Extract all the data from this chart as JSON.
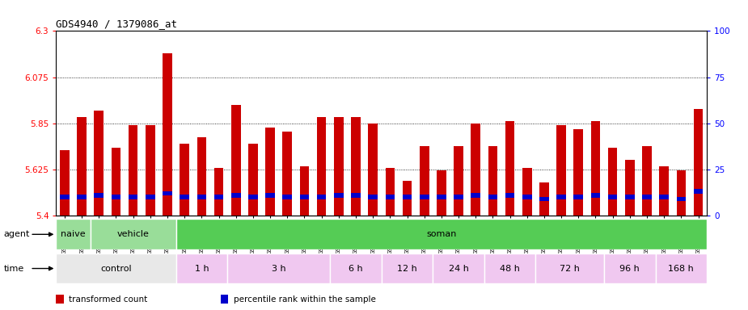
{
  "title": "GDS4940 / 1379086_at",
  "samples": [
    "GSM338857",
    "GSM338858",
    "GSM338859",
    "GSM338862",
    "GSM338864",
    "GSM338877",
    "GSM338880",
    "GSM338860",
    "GSM338861",
    "GSM338863",
    "GSM338865",
    "GSM338866",
    "GSM338867",
    "GSM338868",
    "GSM338869",
    "GSM338870",
    "GSM338871",
    "GSM338872",
    "GSM338873",
    "GSM338874",
    "GSM338875",
    "GSM338876",
    "GSM338878",
    "GSM338879",
    "GSM338881",
    "GSM338882",
    "GSM338883",
    "GSM338884",
    "GSM338885",
    "GSM338886",
    "GSM338887",
    "GSM338888",
    "GSM338889",
    "GSM338890",
    "GSM338891",
    "GSM338892",
    "GSM338893",
    "GSM338894"
  ],
  "transformed_count": [
    5.72,
    5.88,
    5.91,
    5.73,
    5.84,
    5.84,
    6.19,
    5.75,
    5.78,
    5.63,
    5.94,
    5.75,
    5.83,
    5.81,
    5.64,
    5.88,
    5.88,
    5.88,
    5.85,
    5.63,
    5.57,
    5.74,
    5.62,
    5.74,
    5.85,
    5.74,
    5.86,
    5.63,
    5.56,
    5.84,
    5.82,
    5.86,
    5.73,
    5.67,
    5.74,
    5.64,
    5.62,
    5.92
  ],
  "percentile": [
    10,
    10,
    11,
    10,
    10,
    10,
    12,
    10,
    10,
    10,
    11,
    10,
    11,
    10,
    10,
    10,
    11,
    11,
    10,
    10,
    10,
    10,
    10,
    10,
    11,
    10,
    11,
    10,
    9,
    10,
    10,
    11,
    10,
    10,
    10,
    10,
    9,
    13
  ],
  "ymin": 5.4,
  "ymax": 6.3,
  "yticks": [
    5.4,
    5.625,
    5.85,
    6.075,
    6.3
  ],
  "ytick_labels": [
    "5.4",
    "5.625",
    "5.85",
    "6.075",
    "6.3"
  ],
  "right_yticks": [
    0,
    25,
    50,
    75,
    100
  ],
  "right_ytick_labels": [
    "0",
    "25",
    "50",
    "75",
    "100 "
  ],
  "bar_color_red": "#cc0000",
  "bar_color_blue": "#0000cc",
  "grid_lines": [
    5.625,
    5.85,
    6.075
  ],
  "agent_groups": [
    {
      "label": "naive",
      "start": 0,
      "end": 2,
      "color": "#99dd99"
    },
    {
      "label": "vehicle",
      "start": 2,
      "end": 7,
      "color": "#99dd99"
    },
    {
      "label": "soman",
      "start": 7,
      "end": 38,
      "color": "#55cc55"
    }
  ],
  "time_groups": [
    {
      "label": "control",
      "start": 0,
      "end": 7,
      "color": "#e8e8e8"
    },
    {
      "label": "1 h",
      "start": 7,
      "end": 10,
      "color": "#f0c8f0"
    },
    {
      "label": "3 h",
      "start": 10,
      "end": 16,
      "color": "#f0c8f0"
    },
    {
      "label": "6 h",
      "start": 16,
      "end": 19,
      "color": "#f0c8f0"
    },
    {
      "label": "12 h",
      "start": 19,
      "end": 22,
      "color": "#f0c8f0"
    },
    {
      "label": "24 h",
      "start": 22,
      "end": 25,
      "color": "#f0c8f0"
    },
    {
      "label": "48 h",
      "start": 25,
      "end": 28,
      "color": "#f0c8f0"
    },
    {
      "label": "72 h",
      "start": 28,
      "end": 32,
      "color": "#f0c8f0"
    },
    {
      "label": "96 h",
      "start": 32,
      "end": 35,
      "color": "#f0c8f0"
    },
    {
      "label": "168 h",
      "start": 35,
      "end": 38,
      "color": "#f0c8f0"
    }
  ],
  "legend_items": [
    {
      "label": "transformed count",
      "color": "#cc0000"
    },
    {
      "label": "percentile rank within the sample",
      "color": "#0000cc"
    }
  ],
  "bg_color": "#ffffff"
}
